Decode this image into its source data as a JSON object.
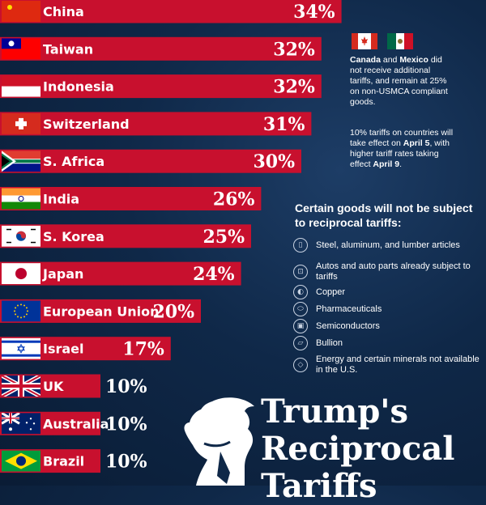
{
  "chart_data": {
    "type": "bar",
    "orientation": "horizontal",
    "categories": [
      "China",
      "Taiwan",
      "Indonesia",
      "Switzerland",
      "S. Africa",
      "India",
      "S. Korea",
      "Japan",
      "European Union",
      "Israel",
      "UK",
      "Australia",
      "Brazil"
    ],
    "values": [
      34,
      32,
      32,
      31,
      30,
      26,
      25,
      24,
      20,
      17,
      10,
      10,
      10
    ],
    "value_labels": [
      "34%",
      "32%",
      "32%",
      "31%",
      "30%",
      "26%",
      "25%",
      "24%",
      "20%",
      "17%",
      "10%",
      "10%",
      "10%"
    ],
    "bar_color": "#c8102e",
    "xlim": [
      0,
      40
    ]
  },
  "colors": {
    "background": "#0f2848",
    "bar": "#c8102e",
    "icon_stroke": "#c9d3e2"
  },
  "notes": {
    "canada_mexico": {
      "country_1": "Canada",
      "and": "and",
      "country_2": "Mexico",
      "text": "did not receive additional tariffs, and remain at 25% on non-USMCA compliant goods."
    },
    "effective": {
      "text_1": "10% tariffs on countries will take effect on",
      "date_1": "April 5",
      "text_2": ", with higher tariff rates taking effect",
      "date_2": "April 9",
      "end": "."
    }
  },
  "exemptions": {
    "heading": "Certain goods will not be subject to reciprocal tariffs:",
    "items": [
      {
        "icon": "lumber-icon",
        "label": "Steel, aluminum, and lumber articles"
      },
      {
        "icon": "car-icon",
        "label": "Autos and auto parts already subject to tariffs"
      },
      {
        "icon": "copper-icon",
        "label": "Copper"
      },
      {
        "icon": "pills-icon",
        "label": "Pharmaceuticals"
      },
      {
        "icon": "chip-icon",
        "label": "Semiconductors"
      },
      {
        "icon": "bullion-icon",
        "label": "Bullion"
      },
      {
        "icon": "minerals-icon",
        "label": "Energy and certain minerals not available in the U.S."
      }
    ]
  },
  "title": {
    "line_1": "Trump's",
    "line_2": "Reciprocal",
    "line_3": "Tariffs"
  }
}
